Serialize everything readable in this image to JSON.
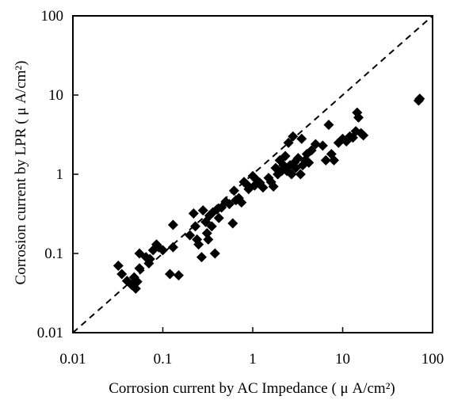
{
  "chart_data": {
    "type": "scatter",
    "xscale": "log",
    "yscale": "log",
    "xlim": [
      0.01,
      100
    ],
    "ylim": [
      0.01,
      100
    ],
    "xticks": [
      "0.01",
      "0.1",
      "1",
      "10",
      "100"
    ],
    "yticks": [
      "0.01",
      "0.1",
      "1",
      "10",
      "100"
    ],
    "xlabel": "Corrosion current by AC Impedance ( μ A/cm²)",
    "ylabel": "Corrosion current by LPR ( μ A/cm²)",
    "grid": false,
    "legend": "none",
    "marker": "diamond",
    "marker_color": "#000000",
    "reference_line": {
      "style": "dashed",
      "from": [
        0.01,
        0.01
      ],
      "to": [
        100,
        100
      ]
    },
    "points": [
      [
        0.032,
        0.07
      ],
      [
        0.035,
        0.055
      ],
      [
        0.04,
        0.045
      ],
      [
        0.045,
        0.04
      ],
      [
        0.048,
        0.05
      ],
      [
        0.05,
        0.036
      ],
      [
        0.052,
        0.044
      ],
      [
        0.055,
        0.065
      ],
      [
        0.055,
        0.1
      ],
      [
        0.065,
        0.09
      ],
      [
        0.07,
        0.075
      ],
      [
        0.072,
        0.085
      ],
      [
        0.078,
        0.11
      ],
      [
        0.085,
        0.13
      ],
      [
        0.09,
        0.12
      ],
      [
        0.1,
        0.11
      ],
      [
        0.12,
        0.055
      ],
      [
        0.13,
        0.12
      ],
      [
        0.13,
        0.23
      ],
      [
        0.15,
        0.053
      ],
      [
        0.2,
        0.17
      ],
      [
        0.22,
        0.32
      ],
      [
        0.23,
        0.22
      ],
      [
        0.24,
        0.15
      ],
      [
        0.25,
        0.13
      ],
      [
        0.27,
        0.09
      ],
      [
        0.28,
        0.35
      ],
      [
        0.3,
        0.25
      ],
      [
        0.31,
        0.18
      ],
      [
        0.32,
        0.15
      ],
      [
        0.33,
        0.3
      ],
      [
        0.35,
        0.22
      ],
      [
        0.36,
        0.33
      ],
      [
        0.38,
        0.1
      ],
      [
        0.4,
        0.36
      ],
      [
        0.42,
        0.28
      ],
      [
        0.45,
        0.38
      ],
      [
        0.5,
        0.45
      ],
      [
        0.55,
        0.42
      ],
      [
        0.6,
        0.24
      ],
      [
        0.62,
        0.62
      ],
      [
        0.65,
        0.47
      ],
      [
        0.7,
        0.5
      ],
      [
        0.75,
        0.44
      ],
      [
        0.8,
        0.8
      ],
      [
        0.85,
        0.75
      ],
      [
        0.9,
        0.65
      ],
      [
        1.0,
        0.95
      ],
      [
        1.05,
        0.72
      ],
      [
        1.1,
        0.85
      ],
      [
        1.2,
        0.78
      ],
      [
        1.3,
        0.68
      ],
      [
        1.5,
        0.9
      ],
      [
        1.6,
        0.8
      ],
      [
        1.7,
        0.7
      ],
      [
        1.8,
        1.2
      ],
      [
        1.9,
        1.0
      ],
      [
        2.0,
        1.5
      ],
      [
        2.1,
        1.1
      ],
      [
        2.2,
        1.3
      ],
      [
        2.3,
        1.7
      ],
      [
        2.4,
        1.1
      ],
      [
        2.5,
        2.5
      ],
      [
        2.6,
        1.3
      ],
      [
        2.7,
        1.0
      ],
      [
        2.8,
        3.0
      ],
      [
        2.9,
        1.4
      ],
      [
        3.0,
        1.2
      ],
      [
        3.2,
        1.6
      ],
      [
        3.4,
        1.0
      ],
      [
        3.5,
        2.8
      ],
      [
        3.6,
        1.3
      ],
      [
        3.8,
        1.5
      ],
      [
        4.0,
        1.8
      ],
      [
        4.2,
        1.4
      ],
      [
        4.5,
        2.0
      ],
      [
        5.0,
        2.4
      ],
      [
        6.0,
        2.3
      ],
      [
        6.5,
        1.5
      ],
      [
        7.0,
        4.2
      ],
      [
        7.5,
        1.8
      ],
      [
        8.0,
        1.5
      ],
      [
        9.0,
        2.5
      ],
      [
        10.0,
        2.8
      ],
      [
        11.0,
        2.6
      ],
      [
        12.0,
        3.0
      ],
      [
        13.0,
        2.9
      ],
      [
        14.0,
        3.5
      ],
      [
        14.5,
        6.0
      ],
      [
        15.0,
        5.2
      ],
      [
        16.0,
        3.3
      ],
      [
        17.0,
        3.1
      ],
      [
        70.0,
        8.5
      ],
      [
        72.0,
        9.0
      ]
    ]
  }
}
